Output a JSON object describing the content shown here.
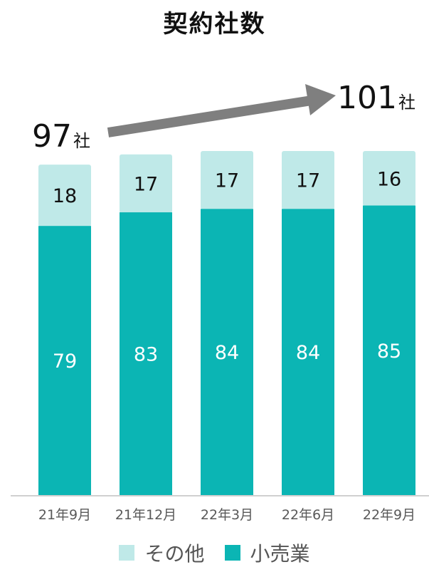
{
  "chart_data": {
    "type": "bar",
    "stacked": true,
    "title": "契約社数",
    "categories": [
      "21年9月",
      "21年12月",
      "22年3月",
      "22年6月",
      "22年9月"
    ],
    "series": [
      {
        "name": "小売業",
        "values": [
          79,
          83,
          84,
          84,
          85
        ],
        "color": "#0bb5b4"
      },
      {
        "name": "その他",
        "values": [
          18,
          17,
          17,
          17,
          16
        ],
        "color": "#bfe9e8"
      }
    ],
    "totals_annotation": {
      "start": {
        "value": "97",
        "unit": "社"
      },
      "end": {
        "value": "101",
        "unit": "社"
      },
      "arrow_color": "#7f7f7f"
    },
    "ylim": [
      0,
      101
    ],
    "legend_position": "bottom",
    "grid": false
  }
}
